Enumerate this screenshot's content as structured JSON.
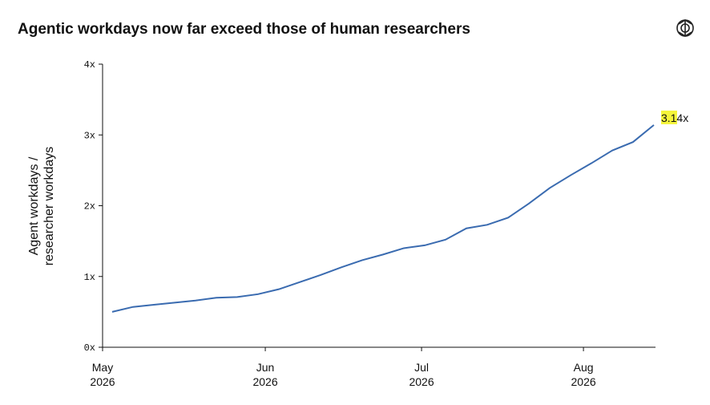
{
  "chart_data": {
    "type": "line",
    "title": "Agentic workdays now far exceed those of human researchers",
    "y_label": [
      "Agent workdays /",
      "researcher workdays"
    ],
    "series": [
      {
        "name": "Agent workdays / researcher workdays",
        "color": "#3a6bb0",
        "values": [
          0.5,
          0.57,
          0.6,
          0.63,
          0.66,
          0.7,
          0.71,
          0.75,
          0.82,
          0.92,
          1.02,
          1.13,
          1.23,
          1.31,
          1.4,
          1.44,
          1.52,
          1.68,
          1.73,
          1.83,
          2.03,
          2.25,
          2.43,
          2.6,
          2.78,
          2.9,
          3.14
        ]
      }
    ],
    "xlim": [
      -0.46,
      26.04
    ],
    "xticks": [
      {
        "value": -0.46,
        "label": "May 2026"
      },
      {
        "value": 7.35,
        "label": "Jun 2026"
      },
      {
        "value": 14.85,
        "label": "Jul 2026"
      },
      {
        "value": 22.62,
        "label": "Aug 2026"
      }
    ],
    "ylim": [
      0,
      4
    ],
    "yticks": [
      {
        "value": 0,
        "label": "0x"
      },
      {
        "value": 1,
        "label": "1x"
      },
      {
        "value": 2,
        "label": "2x"
      },
      {
        "value": 3,
        "label": "3x"
      },
      {
        "value": 4,
        "label": "4x"
      }
    ],
    "end_label": "3.14x",
    "grid": false
  }
}
